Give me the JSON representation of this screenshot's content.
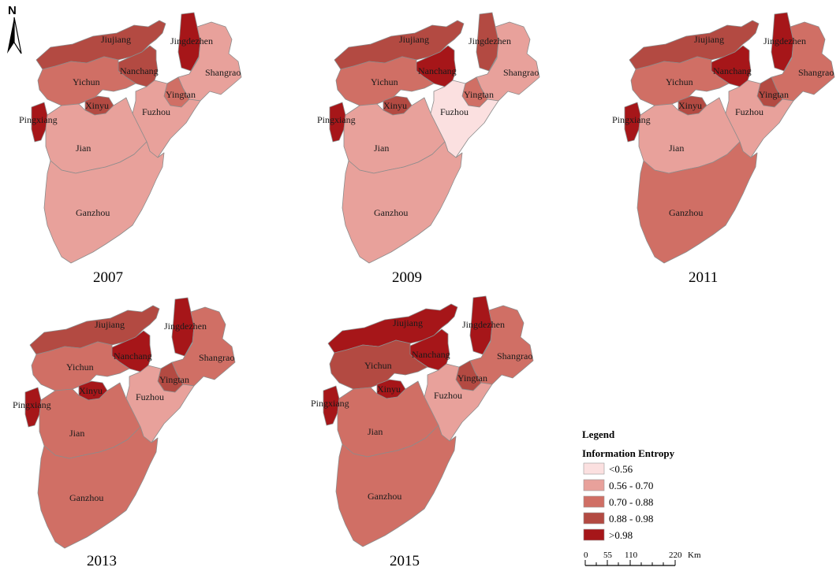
{
  "north_arrow": {
    "label": "N"
  },
  "colors": {
    "lt056": "#fbe0e0",
    "c056_070": "#e8a19b",
    "c070_088": "#d06f65",
    "c088_098": "#b34a42",
    "gt098": "#a61619"
  },
  "maps": [
    {
      "year": "2007",
      "classes": {
        "Jiujiang": "c088_098",
        "Jingdezhen": "gt098",
        "Nanchang": "c088_098",
        "Shangrao": "c056_070",
        "Yichun": "c070_088",
        "Yingtan": "c070_088",
        "Xinyu": "c088_098",
        "Pingxiang": "gt098",
        "Fuzhou": "c056_070",
        "Jian": "c056_070",
        "Ganzhou": "c056_070"
      }
    },
    {
      "year": "2009",
      "classes": {
        "Jiujiang": "c088_098",
        "Jingdezhen": "c088_098",
        "Nanchang": "gt098",
        "Shangrao": "c056_070",
        "Yichun": "c070_088",
        "Yingtan": "c070_088",
        "Xinyu": "c088_098",
        "Pingxiang": "gt098",
        "Fuzhou": "lt056",
        "Jian": "c056_070",
        "Ganzhou": "c056_070"
      }
    },
    {
      "year": "2011",
      "classes": {
        "Jiujiang": "c088_098",
        "Jingdezhen": "gt098",
        "Nanchang": "gt098",
        "Shangrao": "c070_088",
        "Yichun": "c070_088",
        "Yingtan": "c088_098",
        "Xinyu": "c088_098",
        "Pingxiang": "gt098",
        "Fuzhou": "c056_070",
        "Jian": "c056_070",
        "Ganzhou": "c070_088"
      }
    },
    {
      "year": "2013",
      "classes": {
        "Jiujiang": "c088_098",
        "Jingdezhen": "gt098",
        "Nanchang": "gt098",
        "Shangrao": "c070_088",
        "Yichun": "c070_088",
        "Yingtan": "c088_098",
        "Xinyu": "gt098",
        "Pingxiang": "gt098",
        "Fuzhou": "c056_070",
        "Jian": "c070_088",
        "Ganzhou": "c070_088"
      }
    },
    {
      "year": "2015",
      "classes": {
        "Jiujiang": "gt098",
        "Jingdezhen": "gt098",
        "Nanchang": "gt098",
        "Shangrao": "c070_088",
        "Yichun": "c088_098",
        "Yingtan": "c088_098",
        "Xinyu": "gt098",
        "Pingxiang": "gt098",
        "Fuzhou": "c056_070",
        "Jian": "c070_088",
        "Ganzhou": "c070_088"
      }
    }
  ],
  "region_names": {
    "Jiujiang": "Jiujiang",
    "Jingdezhen": "Jingdezhen",
    "Nanchang": "Nanchang",
    "Shangrao": "Shangrao",
    "Yichun": "Yichun",
    "Yingtan": "Yingtan",
    "Xinyu": "Xinyu",
    "Pingxiang": "Pingxiang",
    "Fuzhou": "Fuzhou",
    "Jian": "Jian",
    "Ganzhou": "Ganzhou"
  },
  "legend": {
    "title": "Legend",
    "subtitle": "Information Entropy",
    "items": [
      {
        "key": "lt056",
        "label": "<0.56"
      },
      {
        "key": "c056_070",
        "label": "0.56 - 0.70"
      },
      {
        "key": "c070_088",
        "label": "0.70 - 0.88"
      },
      {
        "key": "c088_098",
        "label": "0.88 - 0.98"
      },
      {
        "key": "gt098",
        "label": ">0.98"
      }
    ]
  },
  "scale_bar": {
    "ticks": [
      "0",
      "55",
      "110",
      "220"
    ],
    "unit": "Km"
  }
}
